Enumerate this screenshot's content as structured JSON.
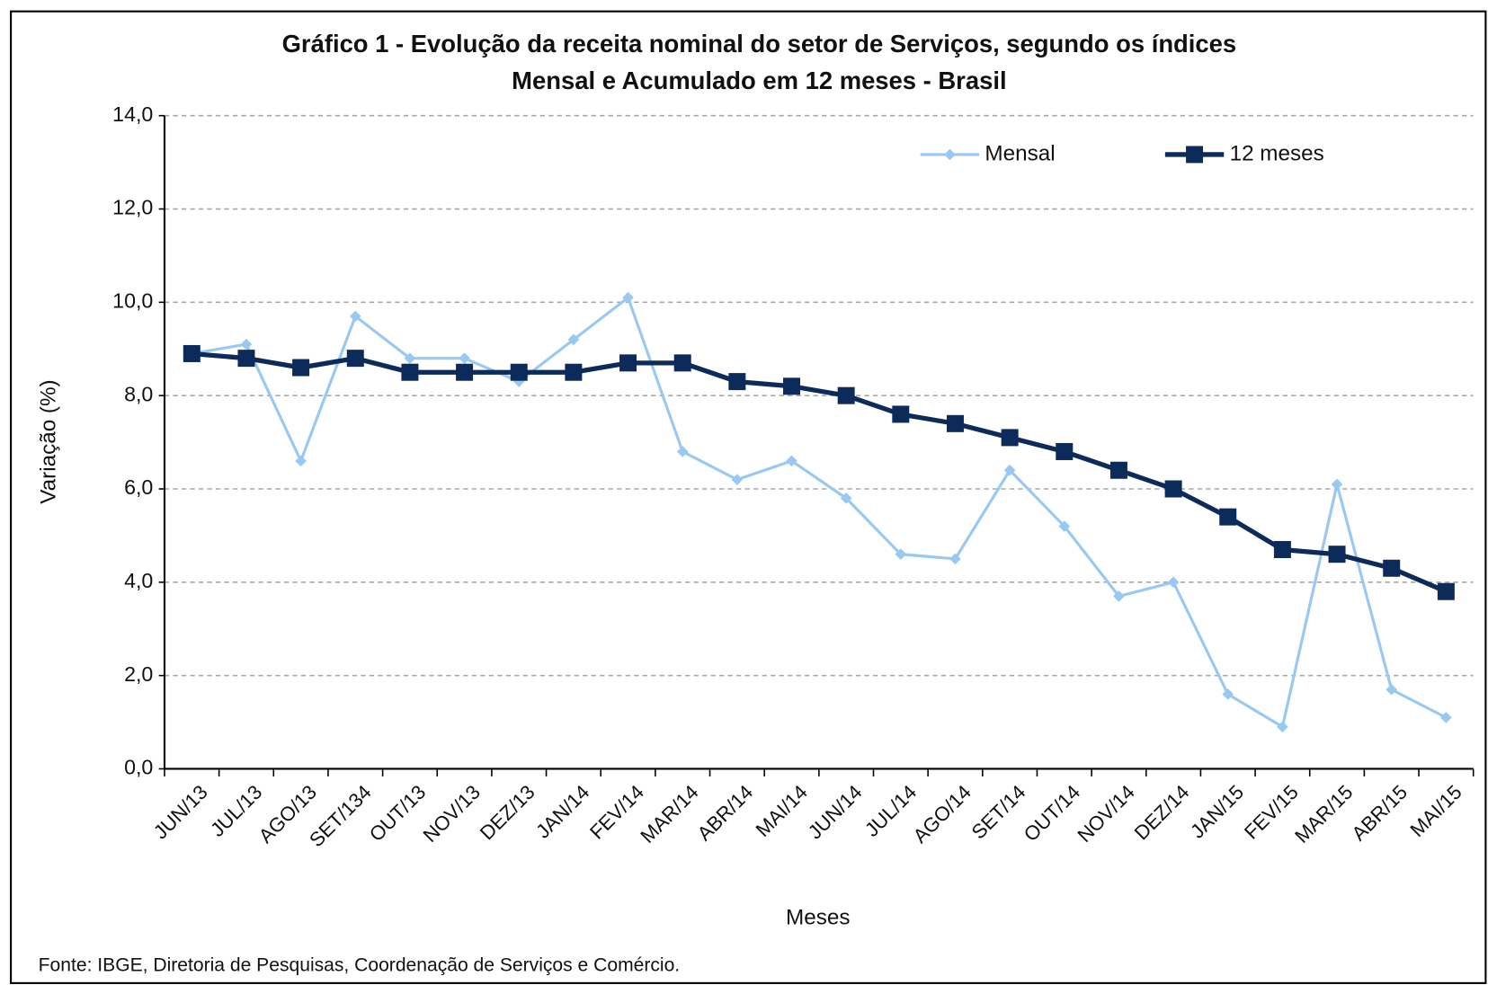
{
  "chart_data": {
    "type": "line",
    "title": [
      "Gráfico 1 - Evolução da receita nominal do setor de Serviços, segundo os índices",
      "Mensal e Acumulado em 12 meses - Brasil"
    ],
    "x_label": "Meses",
    "y_label": "Variação (%)",
    "source": "Fonte: IBGE, Diretoria de Pesquisas, Coordenação de Serviços e Comércio.",
    "categories": [
      "JUN/13",
      "JUL/13",
      "AGO/13",
      "SET/134",
      "OUT/13",
      "NOV/13",
      "DEZ/13",
      "JAN/14",
      "FEV/14",
      "MAR/14",
      "ABR/14",
      "MAI/14",
      "JUN/14",
      "JUL/14",
      "AGO/14",
      "SET/14",
      "OUT/14",
      "NOV/14",
      "DEZ/14",
      "JAN/15",
      "FEV/15",
      "MAR/15",
      "ABR/15",
      "MAI/15"
    ],
    "series": [
      {
        "name": "Mensal",
        "color": "#99c9f2",
        "marker": "diamond",
        "values": [
          8.9,
          9.1,
          6.6,
          9.7,
          8.8,
          8.8,
          8.3,
          9.2,
          10.1,
          6.8,
          6.2,
          6.6,
          5.8,
          4.6,
          4.5,
          6.4,
          5.2,
          3.7,
          4.0,
          1.6,
          0.9,
          6.1,
          1.7,
          1.1
        ]
      },
      {
        "name": "12 meses",
        "color": "#0d2b5a",
        "marker": "square",
        "values": [
          8.9,
          8.8,
          8.6,
          8.8,
          8.5,
          8.5,
          8.5,
          8.5,
          8.7,
          8.7,
          8.3,
          8.2,
          8.0,
          7.6,
          7.4,
          7.1,
          6.8,
          6.4,
          6.0,
          5.4,
          4.7,
          4.6,
          4.3,
          3.8
        ]
      }
    ],
    "ylim": [
      0,
      14
    ],
    "yticks": [
      {
        "value": 0,
        "label": "0,0"
      },
      {
        "value": 2,
        "label": "2,0"
      },
      {
        "value": 4,
        "label": "4,0"
      },
      {
        "value": 6,
        "label": "6,0"
      },
      {
        "value": 8,
        "label": "8,0"
      },
      {
        "value": 10,
        "label": "10,0"
      },
      {
        "value": 12,
        "label": "12,0"
      },
      {
        "value": 14,
        "label": "14,0"
      }
    ],
    "grid": true,
    "legend": "top-right"
  }
}
